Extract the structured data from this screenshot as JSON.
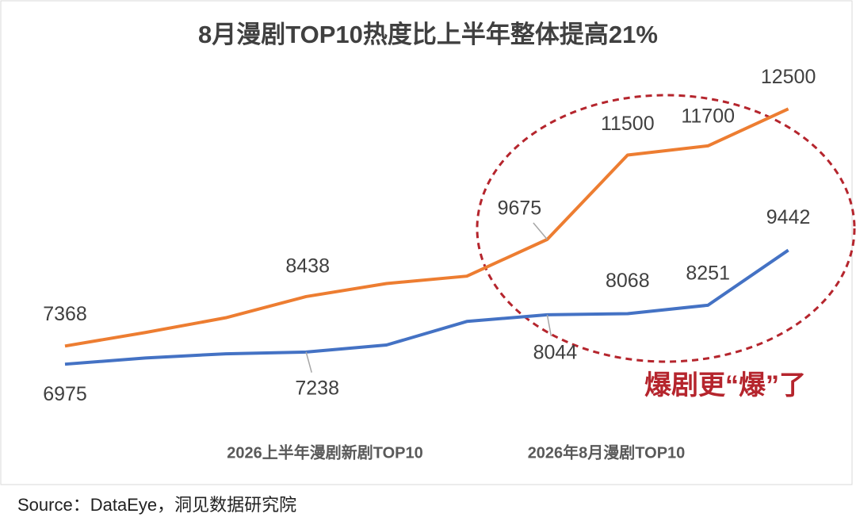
{
  "chart_data": {
    "type": "line",
    "title": "8月漫剧TOP10热度比上半年整体提高21%",
    "categories": [
      null,
      null,
      null,
      null,
      null,
      null,
      null,
      null,
      null,
      null
    ],
    "series": [
      {
        "name": "2026年8月漫剧TOP10",
        "color": "#ed7d31",
        "values": [
          7368,
          7660,
          7980,
          8438,
          8720,
          8880,
          9675,
          11500,
          11700,
          12500
        ]
      },
      {
        "name": "2026上半年漫剧新剧TOP10",
        "color": "#4472c4",
        "values": [
          6975,
          7110,
          7200,
          7238,
          7390,
          7900,
          8044,
          8068,
          8251,
          9442
        ]
      }
    ],
    "ylim": [
      6000,
      13500
    ],
    "group_labels": [
      "2026上半年漫剧新剧TOP10",
      "2026年8月漫剧TOP10"
    ],
    "annotation": "爆剧更“爆”了",
    "source": "Source：DataEye，洞见数据研究院"
  }
}
